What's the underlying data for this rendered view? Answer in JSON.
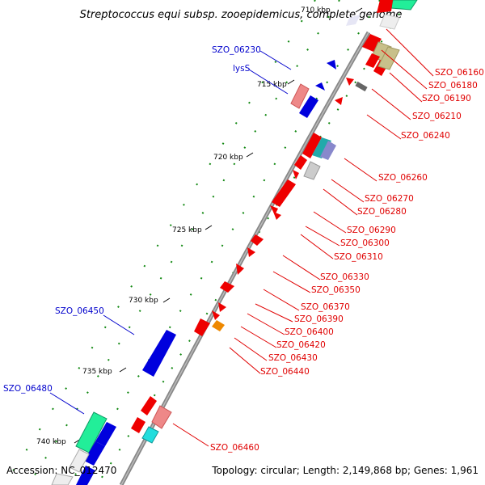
{
  "title": "Streptococcus equi subsp. zooepidemicus, complete genome",
  "footer": {
    "accession": "Accession: NC_012470",
    "topology": "Topology: circular; Length: 2,149,868 bp; Genes: 1,961"
  },
  "ticks": [
    {
      "label": "710 kbp"
    },
    {
      "label": "715 kbp"
    },
    {
      "label": "720 kbp"
    },
    {
      "label": "725 kbp"
    },
    {
      "label": "730 kbp"
    },
    {
      "label": "735 kbp"
    },
    {
      "label": "740 kbp"
    }
  ],
  "gene_labels_red": [
    "SZO_06160",
    "SZO_06180",
    "SZO_06190",
    "SZO_06210",
    "SZO_06240",
    "SZO_06260",
    "SZO_06270",
    "SZO_06280",
    "SZO_06290",
    "SZO_06300",
    "SZO_06310",
    "SZO_06330",
    "SZO_06350",
    "SZO_06370",
    "SZO_06390",
    "SZO_06400",
    "SZO_06420",
    "SZO_06430",
    "SZO_06440",
    "SZO_06460"
  ],
  "gene_labels_blue": [
    "SZO_06230",
    "lysS",
    "SZO_06450",
    "SZO_06480"
  ],
  "colors": {
    "red_gene": "#ee0000",
    "blue_gene": "#0000dd",
    "pink_gene": "#ee8888",
    "olive_gene": "#c8c08a",
    "green_gene": "#22ee99",
    "cyan_gene": "#22dddd",
    "orange_gene": "#ee8800",
    "gray_gene": "#cccccc",
    "backbone": "#888888",
    "gc_dots": "#118811"
  }
}
